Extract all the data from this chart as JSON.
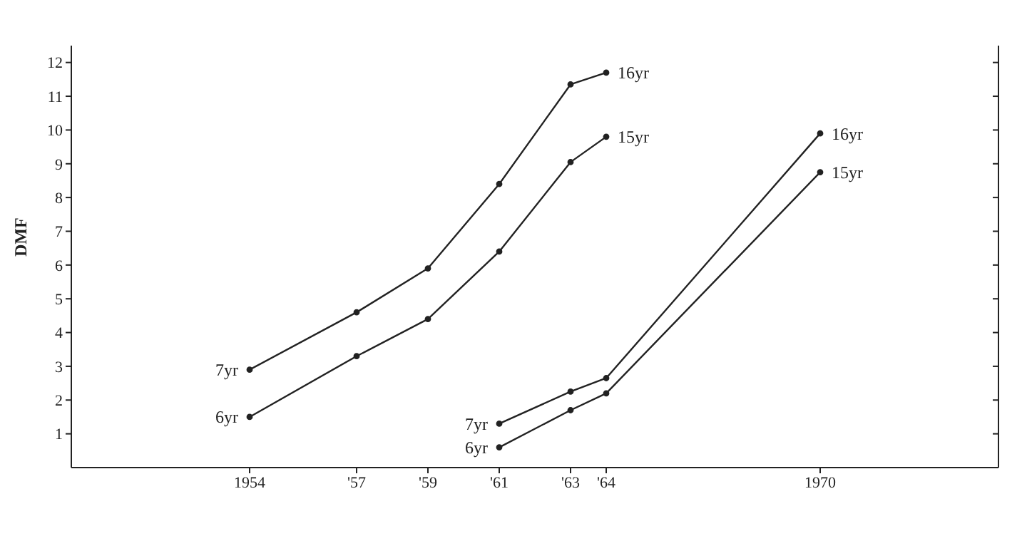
{
  "chart_data": {
    "type": "line",
    "ylabel": "DMF",
    "xlim": [
      1949,
      1975
    ],
    "xticks": [
      1954,
      {
        "value": 1957,
        "label": "'57"
      },
      {
        "value": 1959,
        "label": "'59"
      },
      {
        "value": 1961,
        "label": "'61"
      },
      {
        "value": 1963,
        "label": "'63"
      },
      {
        "value": 1964,
        "label": "'64"
      },
      1970
    ],
    "ylim": [
      0,
      12.5
    ],
    "yticks": [
      1,
      2,
      3,
      4,
      5,
      6,
      7,
      8,
      9,
      10,
      11,
      12
    ],
    "series": [
      {
        "color": "#222222",
        "x": [
          1954,
          1957,
          1959,
          1961,
          1963,
          1964
        ],
        "values": [
          2.9,
          4.6,
          5.9,
          8.4,
          11.35,
          11.7
        ]
      },
      {
        "color": "#222222",
        "x": [
          1954,
          1957,
          1959,
          1961,
          1963,
          1964
        ],
        "values": [
          1.5,
          3.3,
          4.4,
          6.4,
          9.05,
          9.8
        ]
      },
      {
        "color": "#222222",
        "x": [
          1961,
          1963,
          1964,
          1970
        ],
        "values": [
          1.3,
          2.25,
          2.65,
          9.9
        ]
      },
      {
        "color": "#222222",
        "x": [
          1961,
          1963,
          1964,
          1970
        ],
        "values": [
          0.6,
          1.7,
          2.2,
          8.75
        ]
      }
    ],
    "annotations": [
      {
        "text": "7yr",
        "x": 1954,
        "y": 2.9
      },
      {
        "text": "6yr",
        "x": 1954,
        "y": 1.5
      },
      {
        "text": "16yr",
        "x": 1964,
        "y": 11.7
      },
      {
        "text": "15yr",
        "x": 1964,
        "y": 9.8
      },
      {
        "text": "7yr",
        "x": 1961,
        "y": 1.3
      },
      {
        "text": "6yr",
        "x": 1961,
        "y": 0.6
      },
      {
        "text": "16yr",
        "x": 1970,
        "y": 9.9
      },
      {
        "text": "15yr",
        "x": 1970,
        "y": 8.75
      }
    ],
    "grid": false,
    "marker": "circle",
    "line_style": "solid"
  }
}
